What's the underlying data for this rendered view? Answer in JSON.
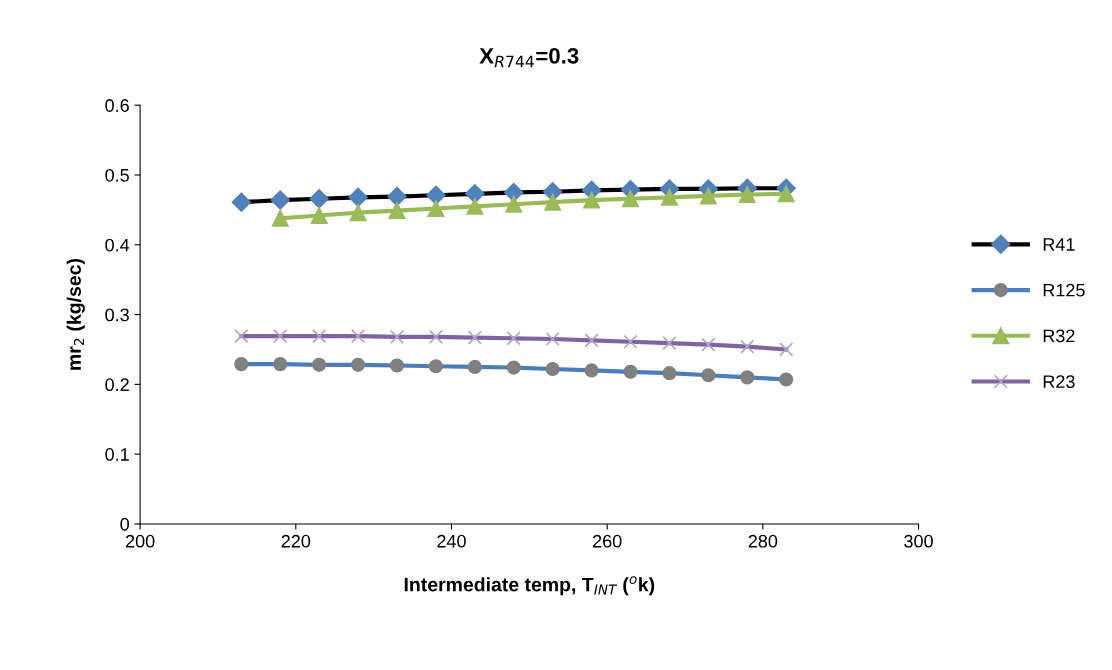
{
  "chart_data": {
    "type": "line",
    "title": "X$_{R744}$=0.3",
    "xlabel": "Intermediate temp, T$_{INT}$ ($^{o}$k)",
    "ylabel": "mr$_{2}$ (kg/sec)",
    "xlim": [
      200,
      300
    ],
    "xticks": [
      200,
      220,
      240,
      260,
      280,
      300
    ],
    "ylim": [
      0,
      0.6
    ],
    "yticks": [
      0,
      0.1,
      0.2,
      0.3,
      0.4,
      0.5,
      0.6
    ],
    "grid": false,
    "legend": "right",
    "line_style": "solid",
    "x": [
      213,
      218,
      223,
      228,
      233,
      238,
      243,
      248,
      253,
      258,
      263,
      268,
      273,
      278,
      283
    ],
    "series": [
      {
        "name": "R41",
        "color": "#000000",
        "marker": "diamond",
        "values": [
          0.461,
          0.464,
          0.466,
          0.468,
          0.469,
          0.471,
          0.473,
          0.475,
          0.476,
          0.478,
          0.479,
          0.48,
          0.48,
          0.481,
          0.481
        ]
      },
      {
        "name": "R125",
        "color": "#4a7ebb",
        "marker": "circle",
        "values": [
          0.229,
          0.229,
          0.228,
          0.228,
          0.227,
          0.226,
          0.225,
          0.224,
          0.222,
          0.22,
          0.218,
          0.216,
          0.213,
          0.21,
          0.207
        ]
      },
      {
        "name": "R32",
        "color": "#9bbb59",
        "marker": "triangle",
        "x": [
          218,
          223,
          228,
          233,
          238,
          243,
          248,
          253,
          258,
          263,
          268,
          273,
          278,
          283
        ],
        "values": [
          0.438,
          0.442,
          0.446,
          0.449,
          0.452,
          0.455,
          0.458,
          0.461,
          0.464,
          0.466,
          0.468,
          0.47,
          0.472,
          0.473
        ]
      },
      {
        "name": "R23",
        "color": "#8064a2",
        "marker": "cross",
        "values": [
          0.269,
          0.269,
          0.269,
          0.269,
          0.268,
          0.268,
          0.267,
          0.266,
          0.265,
          0.263,
          0.261,
          0.259,
          0.257,
          0.254,
          0.25
        ]
      }
    ]
  }
}
